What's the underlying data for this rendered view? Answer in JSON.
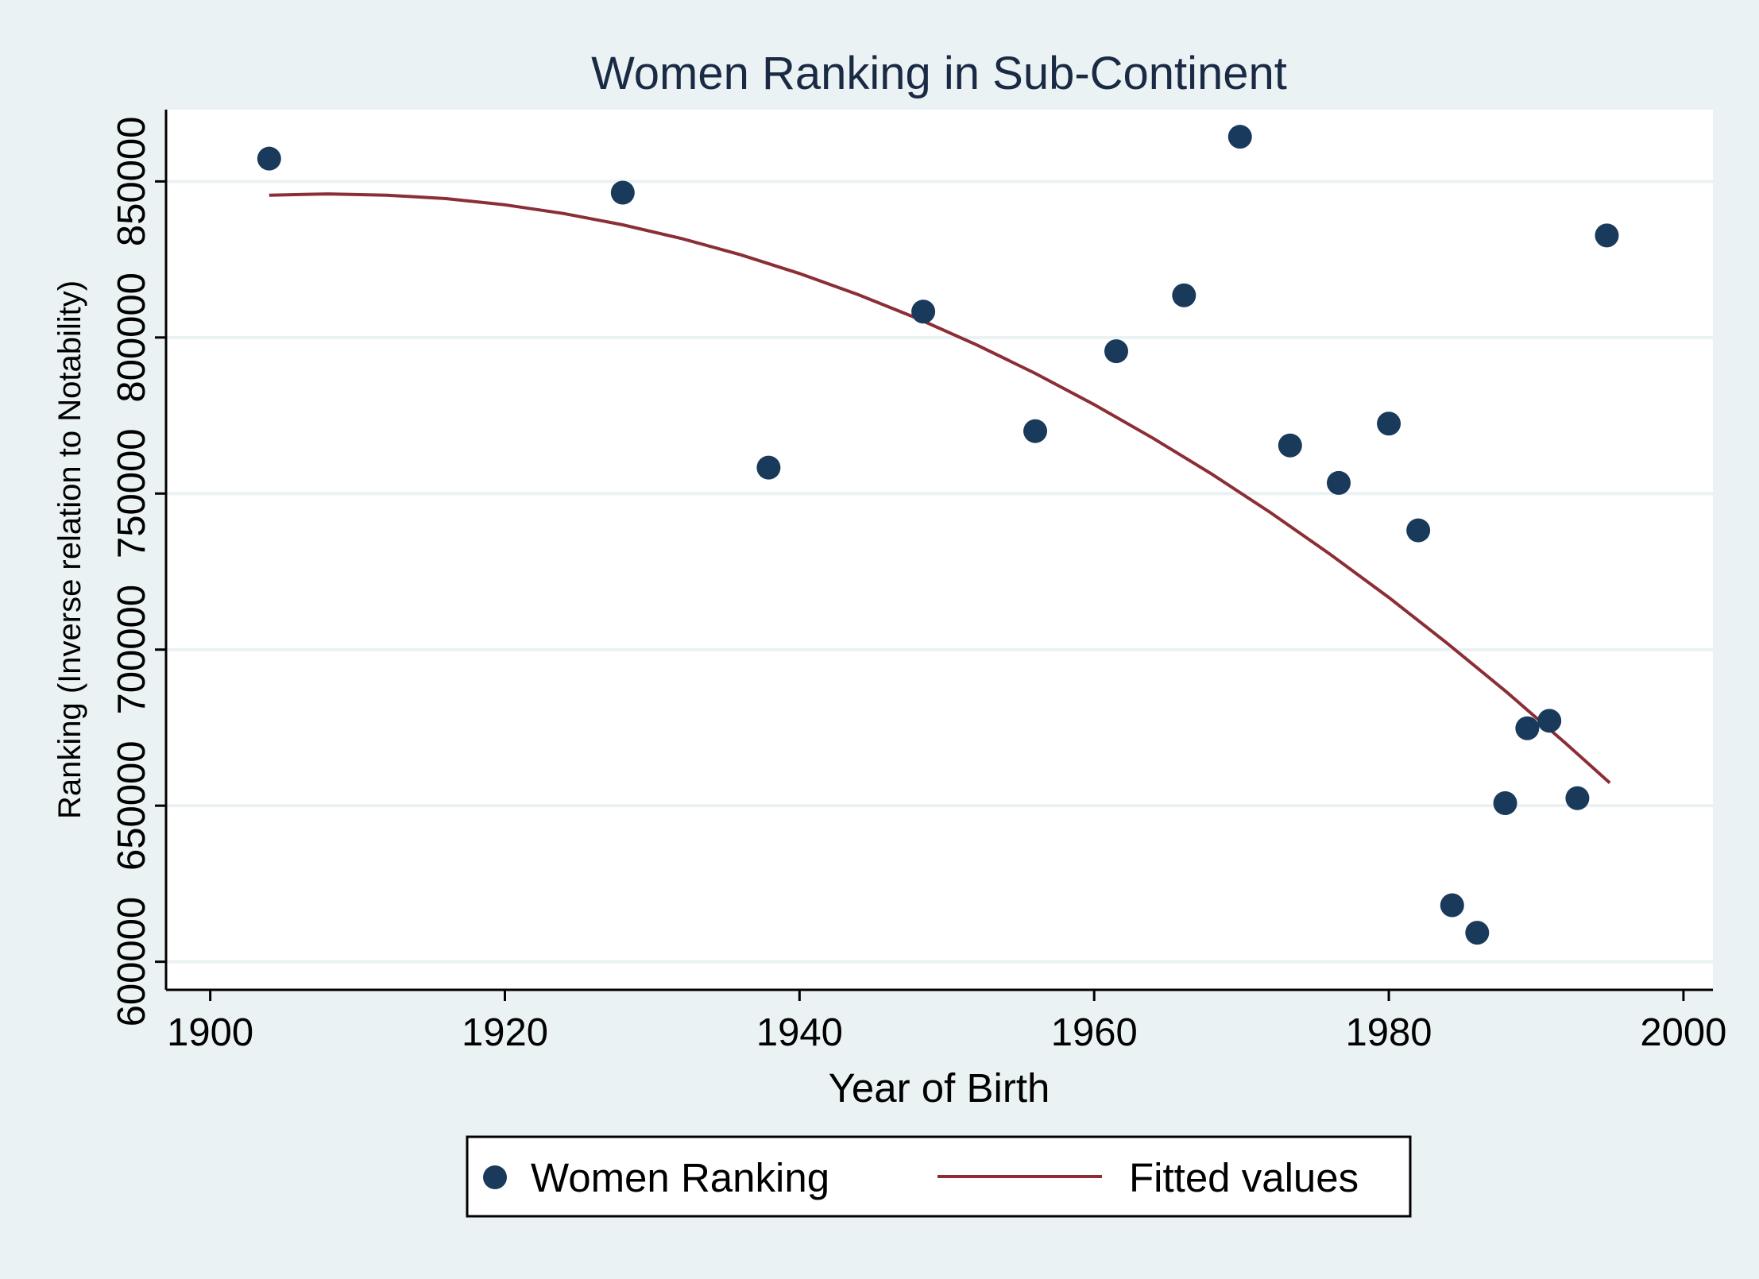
{
  "chart_data": {
    "type": "scatter",
    "title": "Women Ranking in Sub-Continent",
    "xlabel": "Year of Birth",
    "ylabel": "Ranking (Inverse relation to Notability)",
    "xlim": [
      1897,
      2002
    ],
    "ylim": [
      591000,
      873000
    ],
    "x_ticks": [
      1900,
      1920,
      1940,
      1960,
      1980,
      2000
    ],
    "y_ticks": [
      600000,
      650000,
      700000,
      750000,
      800000,
      850000
    ],
    "grid": true,
    "legend_position": "bottom",
    "series": [
      {
        "name": "Women Ranking",
        "type": "scatter",
        "color": "#1a3a5c",
        "x": [
          1904.0,
          1928.0,
          1937.9,
          1948.4,
          1956.0,
          1961.5,
          1966.1,
          1969.9,
          1973.3,
          1976.6,
          1980.0,
          1982.0,
          1984.3,
          1986.0,
          1987.9,
          1989.4,
          1990.9,
          1992.8,
          1994.8
        ],
        "y": [
          857300,
          846400,
          758300,
          808300,
          770000,
          795600,
          813500,
          864300,
          765400,
          753400,
          772400,
          738200,
          618100,
          609300,
          650800,
          674800,
          677200,
          652400,
          832700
        ]
      },
      {
        "name": "Fitted values",
        "type": "line",
        "color": "#8b2e35",
        "x": [
          1904,
          1908,
          1912,
          1916,
          1920,
          1924,
          1928,
          1932,
          1936,
          1940,
          1944,
          1948,
          1952,
          1956,
          1960,
          1964,
          1968,
          1972,
          1976,
          1980,
          1984,
          1988,
          1992,
          1995
        ],
        "y": [
          845600,
          846000,
          845600,
          844500,
          842500,
          839700,
          836100,
          831700,
          826500,
          820500,
          813700,
          806100,
          797700,
          788500,
          778500,
          767700,
          756200,
          743800,
          730600,
          716700,
          701900,
          686400,
          670000,
          657300
        ]
      }
    ]
  }
}
